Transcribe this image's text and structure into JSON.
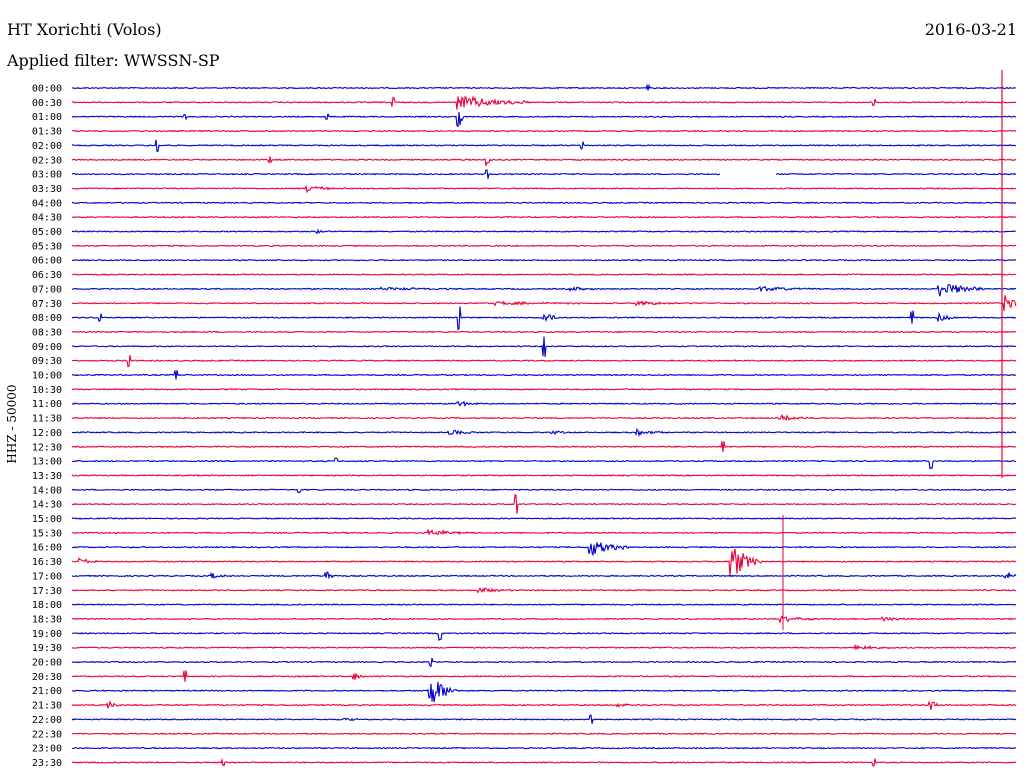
{
  "header": {
    "station": "HT Xorichti (Volos)",
    "filter": "Applied filter: WWSSN-SP",
    "date": "2016-03-21"
  },
  "chart_data": {
    "type": "line",
    "title": "HT Xorichti (Volos)",
    "subtitle": "Applied filter: WWSSN-SP",
    "ylabel": "HHZ - 50000",
    "colors": [
      "#0000cc",
      "#e8003a"
    ],
    "row_labels": [
      "00:00",
      "00:30",
      "01:00",
      "01:30",
      "02:00",
      "02:30",
      "03:00",
      "03:30",
      "04:00",
      "04:30",
      "05:00",
      "05:30",
      "06:00",
      "06:30",
      "07:00",
      "07:30",
      "08:00",
      "08:30",
      "09:00",
      "09:30",
      "10:00",
      "10:30",
      "11:00",
      "11:30",
      "12:00",
      "12:30",
      "13:00",
      "13:30",
      "14:00",
      "14:30",
      "15:00",
      "15:30",
      "16:00",
      "16:30",
      "17:00",
      "17:30",
      "18:00",
      "18:30",
      "19:00",
      "19:30",
      "20:00",
      "20:30",
      "21:00",
      "21:30",
      "22:00",
      "22:30",
      "23:00",
      "23:30"
    ],
    "events": [
      {
        "row": 0,
        "t": 0.61,
        "a": 0.4,
        "d": 0.003
      },
      {
        "row": 1,
        "t": 0.34,
        "a": 0.6,
        "d": 0.003
      },
      {
        "row": 1,
        "t": 0.41,
        "a": 1.2,
        "d": 0.08
      },
      {
        "row": 1,
        "t": 0.85,
        "a": 0.4,
        "d": 0.003
      },
      {
        "row": 2,
        "t": 0.41,
        "a": 2.5,
        "d": 0.005
      },
      {
        "row": 2,
        "t": 0.12,
        "a": 0.3,
        "d": 0.003
      },
      {
        "row": 2,
        "t": 0.27,
        "a": 0.4,
        "d": 0.003
      },
      {
        "row": 4,
        "t": 0.09,
        "a": 0.8,
        "d": 0.003
      },
      {
        "row": 4,
        "t": 0.54,
        "a": 0.5,
        "d": 0.003
      },
      {
        "row": 5,
        "t": 0.21,
        "a": 0.4,
        "d": 0.003
      },
      {
        "row": 5,
        "t": 0.44,
        "a": 1.2,
        "d": 0.005
      },
      {
        "row": 6,
        "t": 0.44,
        "a": 0.6,
        "d": 0.003
      },
      {
        "row": 7,
        "t": 0.25,
        "a": 0.5,
        "d": 0.04
      },
      {
        "row": 10,
        "t": 0.26,
        "a": 0.3,
        "d": 0.02
      },
      {
        "row": 14,
        "t": 0.33,
        "a": 0.3,
        "d": 0.08
      },
      {
        "row": 14,
        "t": 0.53,
        "a": 0.3,
        "d": 0.04
      },
      {
        "row": 14,
        "t": 0.73,
        "a": 0.4,
        "d": 0.06
      },
      {
        "row": 14,
        "t": 0.92,
        "a": 1.3,
        "d": 0.05
      },
      {
        "row": 15,
        "t": 0.45,
        "a": 0.3,
        "d": 0.1
      },
      {
        "row": 15,
        "t": 0.6,
        "a": 0.3,
        "d": 0.06
      },
      {
        "row": 15,
        "t": 0.99,
        "a": 1.5,
        "d": 0.02
      },
      {
        "row": 16,
        "t": 0.03,
        "a": 0.5,
        "d": 0.003
      },
      {
        "row": 16,
        "t": 0.41,
        "a": 1.6,
        "d": 0.003
      },
      {
        "row": 16,
        "t": 0.5,
        "a": 1.0,
        "d": 0.02
      },
      {
        "row": 16,
        "t": 0.89,
        "a": 0.9,
        "d": 0.003
      },
      {
        "row": 16,
        "t": 0.92,
        "a": 0.6,
        "d": 0.02
      },
      {
        "row": 18,
        "t": 0.5,
        "a": 1.4,
        "d": 0.003
      },
      {
        "row": 19,
        "t": 0.06,
        "a": 0.8,
        "d": 0.003
      },
      {
        "row": 20,
        "t": 0.11,
        "a": 0.6,
        "d": 0.003
      },
      {
        "row": 22,
        "t": 0.41,
        "a": 0.5,
        "d": 0.02
      },
      {
        "row": 23,
        "t": 0.75,
        "a": 0.4,
        "d": 0.05
      },
      {
        "row": 24,
        "t": 0.4,
        "a": 0.4,
        "d": 0.04
      },
      {
        "row": 24,
        "t": 0.51,
        "a": 0.3,
        "d": 0.02
      },
      {
        "row": 24,
        "t": 0.6,
        "a": 0.4,
        "d": 0.04
      },
      {
        "row": 25,
        "t": 0.69,
        "a": 0.8,
        "d": 0.003
      },
      {
        "row": 26,
        "t": 0.28,
        "a": 0.4,
        "d": 0.003
      },
      {
        "row": 26,
        "t": 0.91,
        "a": 1.0,
        "d": 0.003
      },
      {
        "row": 28,
        "t": 0.24,
        "a": 0.4,
        "d": 0.003
      },
      {
        "row": 29,
        "t": 0.47,
        "a": 1.3,
        "d": 0.003
      },
      {
        "row": 31,
        "t": 0.38,
        "a": 0.5,
        "d": 0.05
      },
      {
        "row": 32,
        "t": 0.55,
        "a": 1.5,
        "d": 0.04
      },
      {
        "row": 33,
        "t": 0.01,
        "a": 0.5,
        "d": 0.02
      },
      {
        "row": 33,
        "t": 0.7,
        "a": 2.8,
        "d": 0.03
      },
      {
        "row": 34,
        "t": 0.15,
        "a": 0.4,
        "d": 0.03
      },
      {
        "row": 34,
        "t": 0.27,
        "a": 0.9,
        "d": 0.01
      },
      {
        "row": 34,
        "t": 0.99,
        "a": 0.6,
        "d": 0.02
      },
      {
        "row": 35,
        "t": 0.43,
        "a": 0.5,
        "d": 0.04
      },
      {
        "row": 37,
        "t": 0.75,
        "a": 0.6,
        "d": 0.04
      },
      {
        "row": 37,
        "t": 0.86,
        "a": 0.4,
        "d": 0.03
      },
      {
        "row": 38,
        "t": 0.39,
        "a": 0.9,
        "d": 0.003
      },
      {
        "row": 39,
        "t": 0.83,
        "a": 0.4,
        "d": 0.04
      },
      {
        "row": 40,
        "t": 0.38,
        "a": 0.6,
        "d": 0.003
      },
      {
        "row": 41,
        "t": 0.12,
        "a": 0.8,
        "d": 0.003
      },
      {
        "row": 41,
        "t": 0.3,
        "a": 0.6,
        "d": 0.01
      },
      {
        "row": 42,
        "t": 0.38,
        "a": 2.6,
        "d": 0.03
      },
      {
        "row": 43,
        "t": 0.04,
        "a": 0.6,
        "d": 0.01
      },
      {
        "row": 43,
        "t": 0.58,
        "a": 0.3,
        "d": 0.04
      },
      {
        "row": 43,
        "t": 0.91,
        "a": 0.9,
        "d": 0.01
      },
      {
        "row": 44,
        "t": 0.29,
        "a": 0.3,
        "d": 0.02
      },
      {
        "row": 44,
        "t": 0.55,
        "a": 0.6,
        "d": 0.003
      },
      {
        "row": 47,
        "t": 0.16,
        "a": 0.4,
        "d": 0.003
      },
      {
        "row": 47,
        "t": 0.85,
        "a": 0.5,
        "d": 0.003
      }
    ]
  }
}
